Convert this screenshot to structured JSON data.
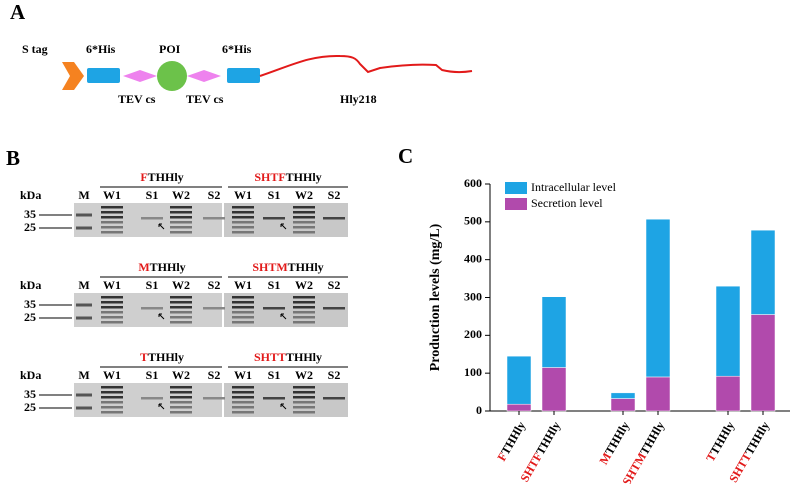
{
  "panel_a": {
    "label": "A",
    "s_tag": "S tag",
    "his_left": "6*His",
    "poi": "POI",
    "his_right": "6*His",
    "tev_left": "TEV cs",
    "tev_right": "TEV cs",
    "hly": "Hly218"
  },
  "panel_b": {
    "label": "B",
    "gels": [
      {
        "left": [
          "F",
          "THHly"
        ],
        "right": [
          "SHTF",
          "THHly"
        ],
        "unit": "kDa",
        "lanes": [
          "M",
          "W1",
          "S1",
          "W2",
          "S2",
          "W1",
          "S1",
          "W2",
          "S2"
        ],
        "markers": [
          35,
          25
        ]
      },
      {
        "left": [
          "M",
          "THHly"
        ],
        "right": [
          "SHTM",
          "THHly"
        ],
        "unit": "kDa",
        "lanes": [
          "M",
          "W1",
          "S1",
          "W2",
          "S2",
          "W1",
          "S1",
          "W2",
          "S2"
        ],
        "markers": [
          35,
          25
        ]
      },
      {
        "left": [
          "T",
          "THHly"
        ],
        "right": [
          "SHTT",
          "THHly"
        ],
        "unit": "kDa",
        "lanes": [
          "M",
          "W1",
          "S1",
          "W2",
          "S2",
          "W1",
          "S1",
          "W2",
          "S2"
        ],
        "markers": [
          35,
          25
        ]
      }
    ]
  },
  "panel_c": {
    "label": "C"
  },
  "chart_data": {
    "type": "stacked_bar",
    "y_label": "Production levels (mg/L)",
    "categories": [
      [
        "F",
        "THHly"
      ],
      [
        "SHTF",
        "THHly"
      ],
      [
        "M",
        "THHly"
      ],
      [
        "SHTM",
        "THHly"
      ],
      [
        "T",
        "THHly"
      ],
      [
        "SHTT",
        "THHly"
      ]
    ],
    "series": [
      {
        "name": "Secretion level",
        "color": "#b14aac",
        "values": [
          18,
          115,
          33,
          90,
          92,
          255
        ]
      },
      {
        "name": "Intracellular level",
        "color": "#1ea4e4",
        "values": [
          127,
          187,
          15,
          417,
          238,
          223
        ]
      }
    ],
    "ylim": [
      0,
      600
    ],
    "yticks": [
      0,
      100,
      200,
      300,
      400,
      500,
      600
    ],
    "legend": "upper left"
  }
}
